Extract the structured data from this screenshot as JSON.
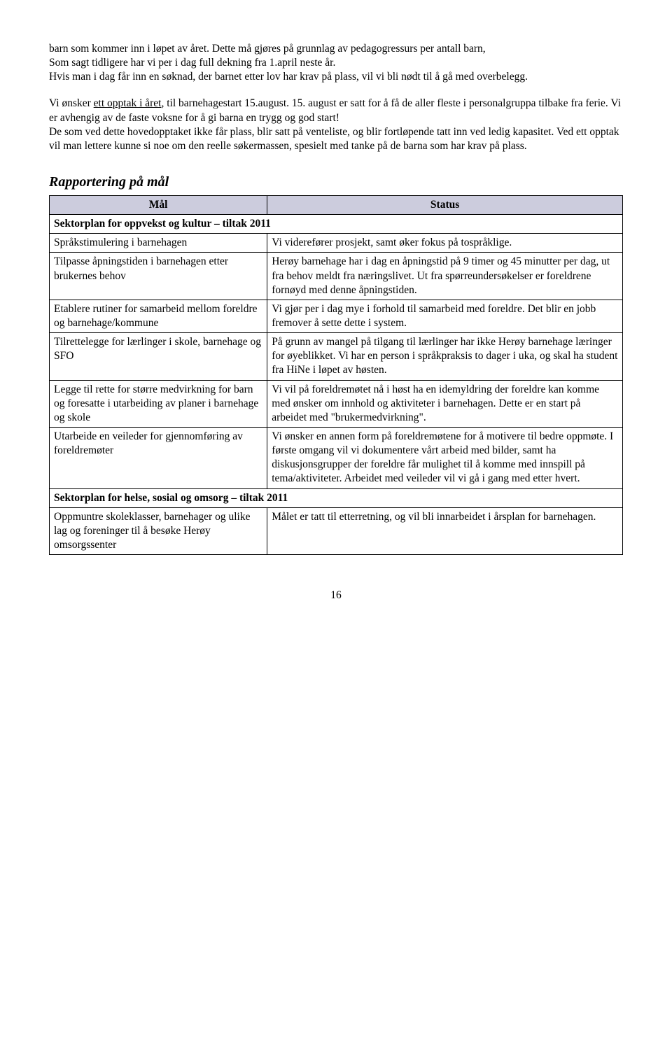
{
  "para1_a": "barn som kommer inn i løpet av året. Dette må gjøres på grunnlag av pedagogressurs per antall barn,",
  "para1_b": "Som sagt tidligere har vi per i dag full dekning fra 1.april neste år.",
  "para1_c": "Hvis man i dag får inn en søknad, der barnet etter lov har krav på plass, vil vi bli nødt til å gå med overbelegg.",
  "para2_a": "Vi ønsker ",
  "para2_u": "ett opptak i året",
  "para2_b": ", til barnehagestart 15.august. 15. august er satt for å få de aller fleste i personalgruppa tilbake fra ferie. Vi er avhengig av de faste voksne for å gi barna en trygg og god start!",
  "para2_c": "De som ved dette hovedopptaket ikke får plass, blir satt på venteliste, og blir fortløpende tatt inn ved ledig kapasitet. Ved ett opptak vil man lettere kunne si noe om den reelle søkermassen, spesielt med tanke på de barna som har krav på plass.",
  "heading": "Rapportering på mål",
  "th_mal": "Mål",
  "th_status": "Status",
  "sub1": "Sektorplan for oppvekst og kultur – tiltak 2011",
  "r1m": "Språkstimulering i barnehagen",
  "r1s": "Vi viderefører prosjekt, samt øker fokus på tospråklige.",
  "r2m": "Tilpasse åpningstiden i barnehagen etter brukernes behov",
  "r2s": "Herøy barnehage har i dag en åpningstid på 9 timer og 45 minutter per dag, ut fra behov meldt fra næringslivet. Ut fra spørreundersøkelser er foreldrene fornøyd med denne åpningstiden.",
  "r3m": "Etablere rutiner for samarbeid mellom foreldre og barnehage/kommune",
  "r3s": "Vi gjør per i dag mye i forhold til samarbeid med foreldre. Det blir en jobb fremover å sette dette i system.",
  "r4m": "Tilrettelegge for lærlinger i skole, barnehage og SFO",
  "r4s": "På grunn av mangel på tilgang til lærlinger har ikke Herøy barnehage læringer for øyeblikket. Vi har en person i språkpraksis to dager i uka, og skal ha student fra HiNe i løpet av høsten.",
  "r5m": "Legge til rette for større medvirkning for barn og foresatte i utarbeiding av planer i barnehage og skole",
  "r5s": "Vi vil på foreldremøtet nå i høst ha en idemyldring der foreldre kan komme med ønsker om innhold og aktiviteter i barnehagen. Dette er en start på arbeidet med \"brukermedvirkning\".",
  "r6m": "Utarbeide en veileder for gjennomføring av foreldremøter",
  "r6s": "Vi ønsker en annen form på foreldremøtene for å motivere til bedre oppmøte. I første omgang vil vi dokumentere vårt arbeid med bilder, samt ha diskusjonsgrupper der foreldre får mulighet til å komme med innspill på tema/aktiviteter.  Arbeidet med veileder vil vi gå i gang med etter hvert.",
  "sub2": "Sektorplan for helse, sosial og omsorg – tiltak 2011",
  "r7m": "Oppmuntre skoleklasser, barnehager og ulike lag og foreninger til å besøke Herøy omsorgssenter",
  "r7s": "Målet er tatt til etterretning, og vil bli innarbeidet i årsplan for barnehagen.",
  "page": "16"
}
